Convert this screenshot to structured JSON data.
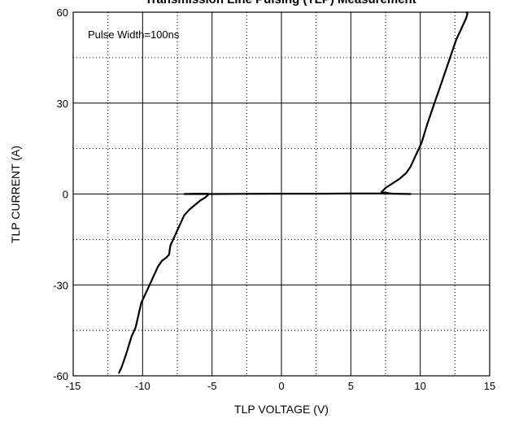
{
  "chart_data": {
    "type": "line",
    "title": "Transmission Line Pulsing (TLP) Measurement",
    "xlabel": "TLP VOLTAGE   (V)",
    "ylabel": "TLP CURRENT  (A)",
    "xlim": [
      -15,
      15
    ],
    "ylim": [
      -60,
      60
    ],
    "x_ticks": [
      -15,
      -10,
      -5,
      0,
      5,
      10,
      15
    ],
    "y_ticks": [
      -60,
      -30,
      0,
      30,
      60
    ],
    "x_minor_ticks": [
      -12.5,
      -7.5,
      -2.5,
      2.5,
      7.5,
      12.5
    ],
    "y_minor_ticks": [
      -45,
      -15,
      15,
      45
    ],
    "grid": true,
    "annotation": "Pulse Width=100ns",
    "series": [
      {
        "color": "#000000",
        "x": [
          -11.7,
          -11.5,
          -11.2,
          -11.0,
          -10.8,
          -10.5,
          -10.3,
          -10.1,
          -9.8,
          -9.5,
          -9.2,
          -8.9,
          -8.6,
          -8.3,
          -8.1,
          -8.0,
          -7.6,
          -7.3,
          -7.0,
          -6.6,
          -6.2,
          -5.8,
          -5.5,
          -5.35,
          -5.25,
          -5.3,
          -6.0,
          -7.0,
          -6.0,
          -5.0,
          -3.0,
          0.0,
          3.0,
          5.0,
          7.0,
          8.0,
          9.3,
          8.0,
          7.2,
          7.5,
          8.0,
          8.5,
          9.0,
          9.3,
          9.6,
          9.9,
          10.1,
          10.3,
          10.5,
          10.8,
          11.1,
          11.4,
          11.7,
          12.0,
          12.3,
          12.6,
          12.9,
          13.1,
          13.3,
          13.4,
          13.35
        ],
        "y": [
          -59,
          -57,
          -53,
          -50,
          -47,
          -44,
          -40,
          -36,
          -33,
          -30,
          -27,
          -24,
          -22,
          -21,
          -20,
          -17,
          -13,
          -10,
          -7,
          -5,
          -3.5,
          -2,
          -1.2,
          -0.6,
          -0.1,
          0.1,
          0.1,
          0.0,
          0.0,
          0.0,
          0.05,
          0.1,
          0.1,
          0.15,
          0.15,
          0.1,
          0.0,
          0.1,
          0.6,
          2.0,
          3.5,
          5.0,
          7.0,
          9.0,
          12.0,
          15.0,
          17.0,
          20.0,
          23.0,
          27.0,
          31.0,
          35.0,
          39.0,
          43.0,
          47.0,
          51.0,
          54.0,
          56.0,
          58.0,
          59.5,
          60.0
        ]
      }
    ]
  }
}
